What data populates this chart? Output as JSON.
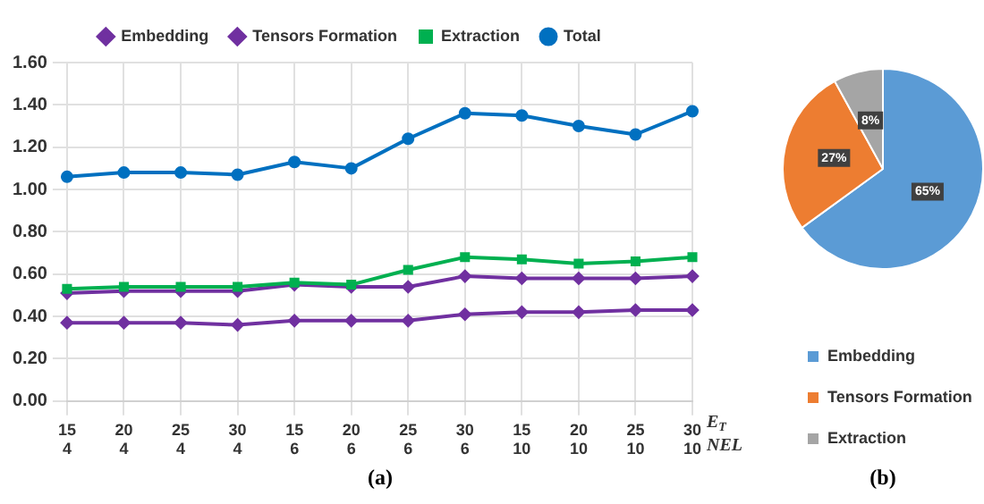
{
  "chart_data": [
    {
      "type": "line",
      "categories": [
        "15\n4",
        "20\n4",
        "25\n4",
        "30\n4",
        "15\n6",
        "20\n6",
        "25\n6",
        "30\n6",
        "15\n10",
        "20\n10",
        "25\n10",
        "30\n10"
      ],
      "series": [
        {
          "name": "Embedding",
          "color": "#7030a0",
          "marker": "diamond",
          "values": [
            0.37,
            0.37,
            0.37,
            0.36,
            0.38,
            0.38,
            0.38,
            0.41,
            0.42,
            0.42,
            0.43,
            0.43
          ]
        },
        {
          "name": "Tensors Formation",
          "color": "#7030a0",
          "marker": "diamond",
          "values": [
            0.51,
            0.52,
            0.52,
            0.52,
            0.55,
            0.54,
            0.54,
            0.59,
            0.58,
            0.58,
            0.58,
            0.59
          ]
        },
        {
          "name": "Extraction",
          "color": "#00b050",
          "marker": "square",
          "values": [
            0.53,
            0.54,
            0.54,
            0.54,
            0.56,
            0.55,
            0.62,
            0.68,
            0.67,
            0.65,
            0.66,
            0.68
          ]
        },
        {
          "name": "Total",
          "color": "#0070c0",
          "marker": "circle",
          "values": [
            1.06,
            1.08,
            1.08,
            1.07,
            1.13,
            1.1,
            1.24,
            1.36,
            1.35,
            1.3,
            1.26,
            1.37
          ]
        }
      ],
      "ylim": [
        0,
        1.6
      ],
      "yticks": [
        {
          "value": 0,
          "label": "0.00"
        },
        {
          "value": 0.2,
          "label": "0.20"
        },
        {
          "value": 0.4,
          "label": "0.40"
        },
        {
          "value": 0.6,
          "label": "0.60"
        },
        {
          "value": 0.8,
          "label": "0.80"
        },
        {
          "value": 1,
          "label": "1.00"
        },
        {
          "value": 1.2,
          "label": "1.20"
        },
        {
          "value": 1.4,
          "label": "1.40"
        },
        {
          "value": 1.6,
          "label": "1.60"
        }
      ],
      "grid": true,
      "legend": "top",
      "annotations": [
        "E$_{T}$",
        "NEL",
        "(a)"
      ]
    },
    {
      "type": "pie",
      "categories": [
        "Embedding",
        "Tensors Formation",
        "Extraction"
      ],
      "values": [
        65,
        27,
        8
      ],
      "colors": [
        "#5b9bd5",
        "#ed7d31",
        "#a5a5a5"
      ],
      "value_labels": [
        "65%",
        "27%",
        "8%"
      ],
      "legend": "bottom",
      "annotations": [
        "(b)"
      ]
    }
  ]
}
